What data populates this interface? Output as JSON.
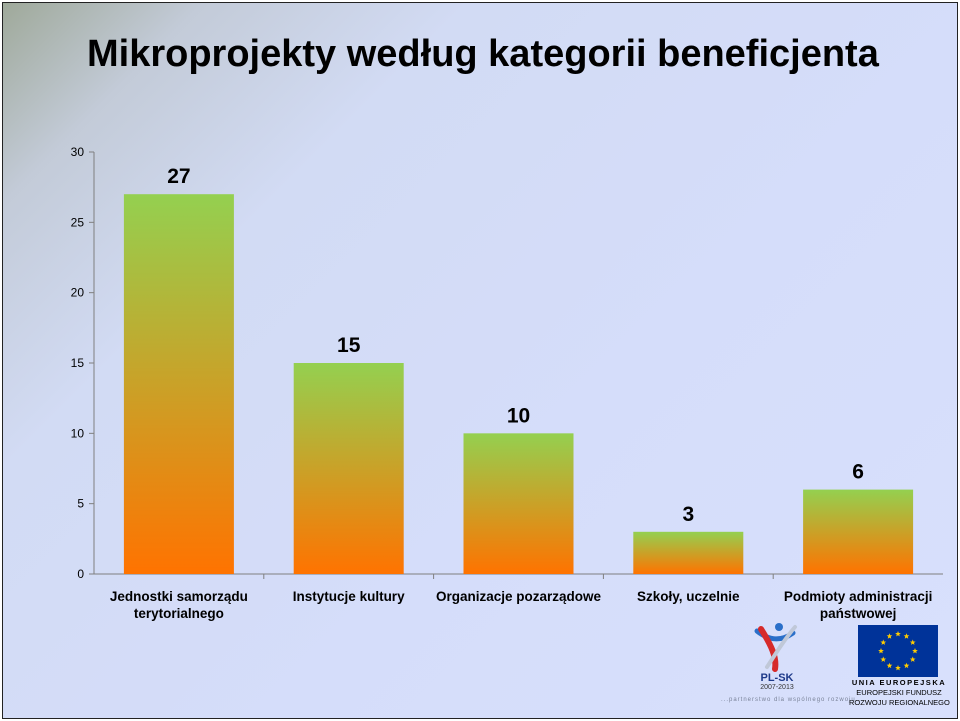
{
  "slide": {
    "title": "Mikroprojekty według kategorii beneficjenta"
  },
  "chart_data": {
    "type": "bar",
    "title": "",
    "xlabel": "",
    "ylabel": "",
    "categories": [
      [
        "Jednostki samorządu",
        "terytorialnego"
      ],
      [
        "Instytucje kultury"
      ],
      [
        "Organizacje pozarządowe"
      ],
      [
        "Szkoły, uczelnie"
      ],
      [
        "Podmioty administracji",
        "państwowej"
      ]
    ],
    "values": [
      27,
      15,
      10,
      3,
      6
    ],
    "ylim": [
      0,
      30
    ],
    "yticks": [
      0,
      5,
      10,
      15,
      20,
      25,
      30
    ],
    "grid": false,
    "data_labels": true,
    "bar_gradient": {
      "top": "#94d050",
      "bottom": "#ff7300"
    }
  },
  "logos": {
    "plsk": {
      "name": "PL-SK",
      "years": "2007-2013",
      "icon": "plsk-logo-icon"
    },
    "slogan": "...partnerstwo dla wspólnego rozwoju...",
    "eu": {
      "icon": "eu-flag-icon",
      "flag_color": "#003399",
      "star_color": "#ffcc00",
      "line1": "UNIA EUROPEJSKA",
      "line2": "EUROPEJSKI FUNDUSZ",
      "line3": "ROZWOJU REGIONALNEGO"
    }
  }
}
